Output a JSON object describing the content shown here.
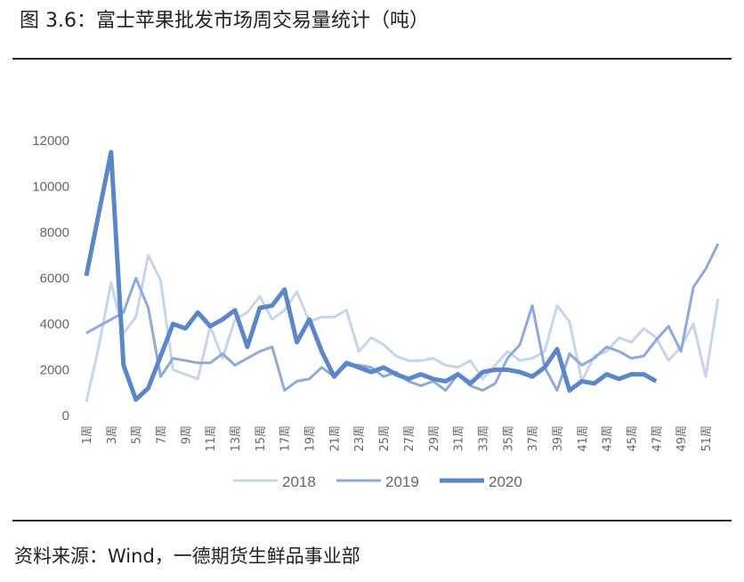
{
  "chart_data": {
    "type": "line",
    "title": "图 3.6：富士苹果批发市场周交易量统计（吨）",
    "source": "资料来源：Wind，一德期货生鲜品事业部",
    "categories": [
      "1周",
      null,
      "3周",
      null,
      "5周",
      null,
      "7周",
      null,
      "9周",
      null,
      "11周",
      null,
      "13周",
      null,
      "15周",
      null,
      "17周",
      null,
      "19周",
      null,
      "21周",
      null,
      "23周",
      null,
      "25周",
      null,
      "27周",
      null,
      "29周",
      null,
      "31周",
      null,
      "33周",
      null,
      "35周",
      null,
      "37周",
      null,
      "39周",
      null,
      "41周",
      null,
      "43周",
      null,
      "45周",
      null,
      "47周",
      null,
      "49周",
      null,
      "51周",
      null
    ],
    "series": [
      {
        "name": "2018",
        "color": "#c5d5ee",
        "width": 3,
        "values": [
          600,
          3000,
          5800,
          3600,
          4300,
          7000,
          5900,
          2000,
          1800,
          1600,
          3900,
          2500,
          4200,
          4500,
          5200,
          4200,
          4600,
          5400,
          4100,
          4300,
          4300,
          4600,
          2800,
          3400,
          3100,
          2600,
          2400,
          2400,
          2500,
          2200,
          2100,
          2400,
          1600,
          2200,
          2800,
          2400,
          2500,
          2800,
          4800,
          4100,
          1500,
          2600,
          2800,
          3400,
          3200,
          3800,
          3400,
          2400,
          3000,
          4000,
          1700,
          5100
        ]
      },
      {
        "name": "2019",
        "color": "#8eaadb",
        "width": 3,
        "values": [
          3600,
          3900,
          4200,
          4500,
          6000,
          4700,
          1700,
          2500,
          2400,
          2300,
          2300,
          2700,
          2200,
          2500,
          2800,
          3000,
          1100,
          1500,
          1600,
          2100,
          1700,
          2200,
          2200,
          2100,
          1700,
          1900,
          1500,
          1300,
          1500,
          1100,
          1800,
          1300,
          1100,
          1400,
          2500,
          3100,
          4800,
          2100,
          1100,
          2700,
          2200,
          2500,
          3000,
          2800,
          2500,
          2600,
          3300,
          3900,
          2800,
          5600,
          6400,
          7500
        ]
      },
      {
        "name": "2020",
        "color": "#5b86c8",
        "width": 5,
        "values": [
          6100,
          8800,
          11500,
          2200,
          700,
          1200,
          2600,
          4000,
          3800,
          4500,
          3900,
          4200,
          4600,
          3000,
          4700,
          4800,
          5500,
          3200,
          4200,
          2800,
          1700,
          2300,
          2100,
          1900,
          2100,
          1800,
          1600,
          1800,
          1600,
          1500,
          1800,
          1400,
          1900,
          2000,
          2000,
          1900,
          1700,
          2100,
          2900,
          1100,
          1500,
          1400,
          1800,
          1600,
          1800,
          1800,
          1500,
          null,
          null,
          null,
          null,
          null
        ]
      }
    ],
    "ylim": [
      0,
      12000
    ],
    "yticks": [
      0,
      2000,
      4000,
      6000,
      8000,
      10000,
      12000
    ],
    "grid": false
  }
}
